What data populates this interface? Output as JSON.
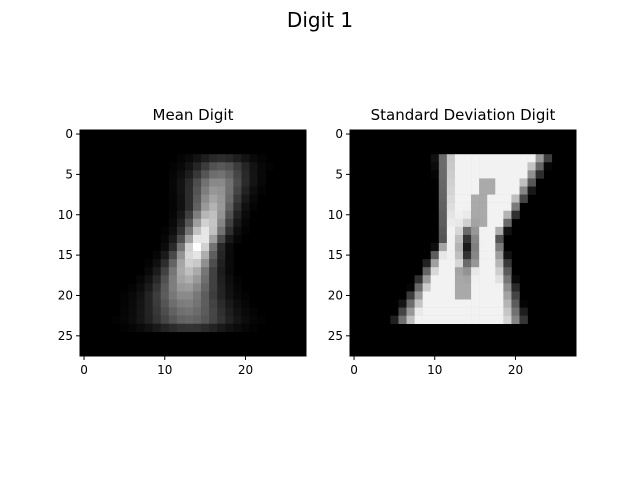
{
  "figure_title": "Digit 1",
  "chart_data": [
    {
      "type": "heatmap",
      "title": "Mean Digit",
      "colormap": "gray",
      "grid": false,
      "image_size": [
        28,
        28
      ],
      "x_ticks": [
        0,
        10,
        20
      ],
      "y_ticks": [
        0,
        5,
        10,
        15,
        20,
        25
      ],
      "xlim": [
        -0.5,
        27.5
      ],
      "ylim": [
        27.5,
        -0.5
      ],
      "stroke_path": [
        {
          "row": 4,
          "center_col": 17,
          "half_width": 2.0,
          "intensity": 0.35
        },
        {
          "row": 6,
          "center_col": 16.5,
          "half_width": 2.0,
          "intensity": 0.55
        },
        {
          "row": 9,
          "center_col": 16,
          "half_width": 1.6,
          "intensity": 0.7
        },
        {
          "row": 12,
          "center_col": 15,
          "half_width": 1.5,
          "intensity": 0.9
        },
        {
          "row": 14,
          "center_col": 14,
          "half_width": 1.4,
          "intensity": 1.0
        },
        {
          "row": 17,
          "center_col": 13,
          "half_width": 1.8,
          "intensity": 0.75
        },
        {
          "row": 20,
          "center_col": 12.5,
          "half_width": 2.4,
          "intensity": 0.55
        },
        {
          "row": 23,
          "center_col": 13,
          "half_width": 3.0,
          "intensity": 0.4
        }
      ]
    },
    {
      "type": "heatmap",
      "title": "Standard Deviation Digit",
      "colormap": "gray",
      "grid": false,
      "image_size": [
        28,
        28
      ],
      "x_ticks": [
        0,
        10,
        20
      ],
      "y_ticks": [
        0,
        5,
        10,
        15,
        20,
        25
      ],
      "xlim": [
        -0.5,
        27.5
      ],
      "ylim": [
        27.5,
        -0.5
      ],
      "hourglass": {
        "top_row": 3,
        "bottom_row": 24,
        "waist_row": 13,
        "top_left_col": 12.5,
        "top_right_col": 22,
        "bottom_left_col": 7,
        "bottom_right_col": 19,
        "waist_left_col": 12.5,
        "waist_right_col": 16.5,
        "dark_core": {
          "row": 14,
          "col": 14,
          "intensity": 0.1
        }
      }
    }
  ]
}
